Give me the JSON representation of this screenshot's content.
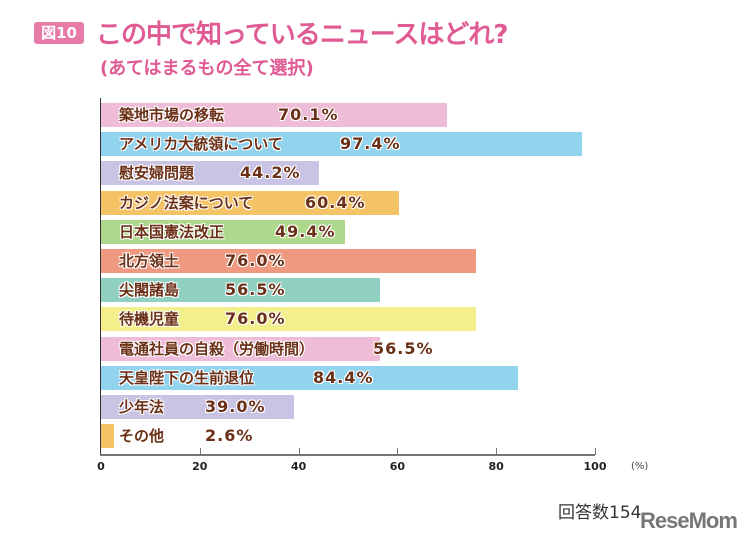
{
  "badge": "図10",
  "logo_text": "ReseMom",
  "response_count": "回答数154",
  "chart_data": {
    "type": "bar",
    "orientation": "horizontal",
    "title": "この中で知っているニュースはどれ?",
    "subtitle": "(あてはまるもの全て選択)",
    "xlabel": "(%)",
    "xlim": [
      0,
      100
    ],
    "xticks": [
      "0",
      "20",
      "40",
      "60",
      "80",
      "100"
    ],
    "grid": false,
    "categories": [
      "築地市場の移転",
      "アメリカ大統領について",
      "慰安婦問題",
      "カジノ法案について",
      "日本国憲法改正",
      "北方領土",
      "尖閣諸島",
      "待機児童",
      "電通社員の自殺（労働時間）",
      "天皇陛下の生前退位",
      "少年法",
      "その他"
    ],
    "values": [
      70.1,
      97.4,
      44.2,
      60.4,
      49.4,
      76.0,
      56.5,
      76.0,
      56.5,
      84.4,
      39.0,
      2.6
    ],
    "value_labels": [
      "70.1%",
      "97.4%",
      "44.2%",
      "60.4%",
      "49.4%",
      "76.0%",
      "56.5%",
      "76.0%",
      "56.5%",
      "84.4%",
      "39.0%",
      "2.6%"
    ],
    "colors": [
      "#eebcd6",
      "#92d3ee",
      "#c9c3e4",
      "#f4c365",
      "#aed88c",
      "#ef9a80",
      "#8fd0c0",
      "#f2ef8c",
      "#eebcd6",
      "#92d3ee",
      "#c9c3e4",
      "#f4c365"
    ]
  }
}
